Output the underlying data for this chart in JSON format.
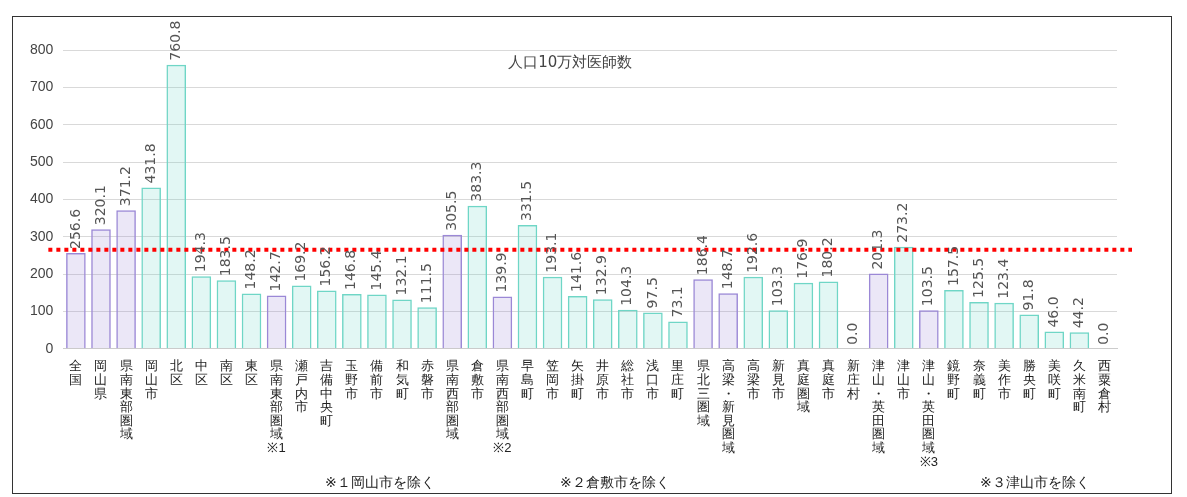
{
  "chart_data": {
    "type": "bar",
    "title": "人口10万対医師数",
    "categories": [
      "全国",
      "岡山県",
      "県南東部圏域",
      "岡山市",
      "北区",
      "中区",
      "南区",
      "東区",
      "県南東部圏域※1",
      "瀬戸内市",
      "吉備中央町",
      "玉野市",
      "備前市",
      "和気町",
      "赤磐市",
      "県南西部圏域",
      "倉敷市",
      "県南西部圏域※2",
      "早島町",
      "笠岡市",
      "矢掛町",
      "井原市",
      "総社市",
      "浅口市",
      "里庄町",
      "県北三圏域",
      "高梁・新見圏域",
      "高梁市",
      "新見市",
      "真庭圏域",
      "真庭市",
      "新庄村",
      "津山・英田圏域",
      "津山市",
      "津山・英田圏域※3",
      "鏡野町",
      "奈義町",
      "美作市",
      "勝央町",
      "美咲町",
      "久米南町",
      "西粟倉村"
    ],
    "values": [
      256.6,
      320.1,
      371.2,
      431.8,
      760.8,
      194.3,
      183.5,
      148.2,
      142.7,
      169.2,
      156.2,
      146.8,
      145.4,
      132.1,
      111.5,
      305.5,
      383.3,
      139.9,
      331.5,
      193.1,
      141.6,
      132.9,
      104.3,
      97.5,
      73.1,
      186.4,
      148.7,
      192.6,
      103.3,
      176.9,
      180.2,
      0.0,
      201.3,
      273.2,
      103.5,
      157.5,
      125.5,
      123.4,
      91.8,
      46.0,
      44.2,
      0.0
    ],
    "colors": [
      "#9b88d6",
      "#9b88d6",
      "#9b88d6",
      "#6fd6c6",
      "#6fd6c6",
      "#6fd6c6",
      "#6fd6c6",
      "#6fd6c6",
      "#9b88d6",
      "#6fd6c6",
      "#6fd6c6",
      "#6fd6c6",
      "#6fd6c6",
      "#6fd6c6",
      "#6fd6c6",
      "#9b88d6",
      "#6fd6c6",
      "#9b88d6",
      "#6fd6c6",
      "#6fd6c6",
      "#6fd6c6",
      "#6fd6c6",
      "#6fd6c6",
      "#6fd6c6",
      "#6fd6c6",
      "#9b88d6",
      "#9b88d6",
      "#6fd6c6",
      "#6fd6c6",
      "#6fd6c6",
      "#6fd6c6",
      "#6fd6c6",
      "#9b88d6",
      "#6fd6c6",
      "#9b88d6",
      "#6fd6c6",
      "#6fd6c6",
      "#6fd6c6",
      "#6fd6c6",
      "#6fd6c6",
      "#6fd6c6",
      "#6fd6c6"
    ],
    "ylim": [
      0,
      800
    ],
    "yticks": [
      0,
      100,
      200,
      300,
      400,
      500,
      600,
      700,
      800
    ],
    "grid": "y",
    "legend": false,
    "value_labels": [
      "256.6",
      "320.1",
      "371.2",
      "431.8",
      "760.8",
      "194.3",
      "183.5",
      "148.2",
      "142.7",
      "169.2",
      "156.2",
      "146.8",
      "145.4",
      "132.1",
      "111.5",
      "305.5",
      "383.3",
      "139.9",
      "331.5",
      "193.1",
      "141.6",
      "132.9",
      "104.3",
      "97.5",
      "73.1",
      "186.4",
      "148.7",
      "192.6",
      "103.3",
      "176.9",
      "180.2",
      "0.0",
      "201.3",
      "273.2",
      "103.5",
      "157.5",
      "125.5",
      "123.4",
      "91.8",
      "46.0",
      "44.2",
      "0.0"
    ],
    "ref_lines": [
      {
        "axis": "y",
        "value": 265,
        "color": "#ff0000",
        "line_style": "dotted"
      }
    ],
    "annotations": [
      "※１岡山市を除く",
      "※２倉敷市を除く",
      "※３津山市を除く"
    ]
  }
}
